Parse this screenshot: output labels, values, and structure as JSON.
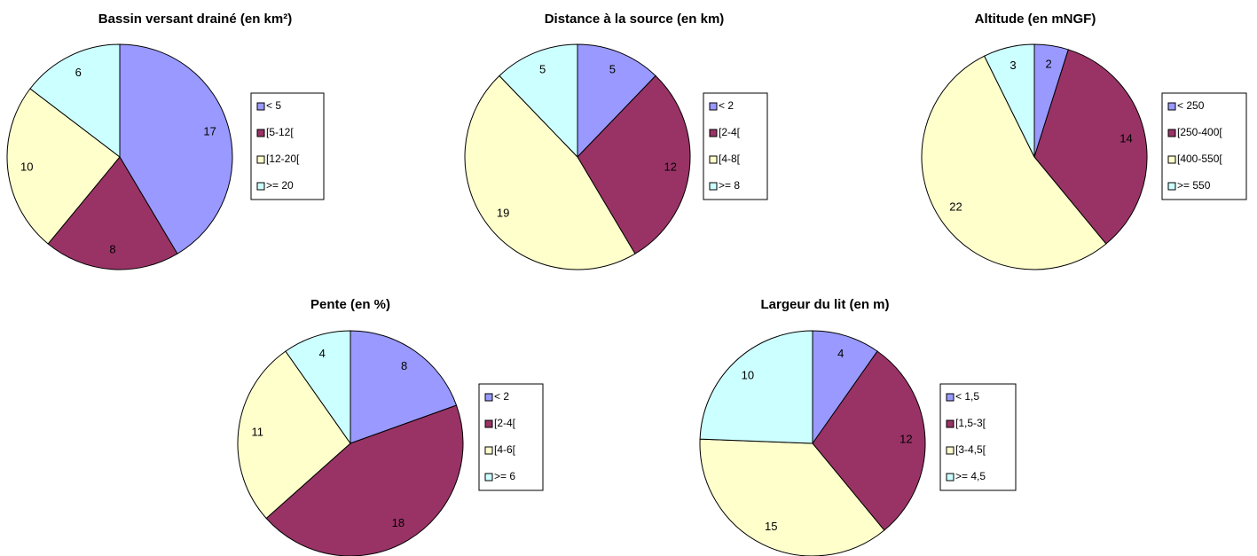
{
  "chart_data": [
    {
      "type": "pie",
      "title": "Bassin versant drainé (en km²)",
      "categories": [
        "< 5",
        "[5-12[",
        "[12-20[",
        ">= 20"
      ],
      "values": [
        17,
        8,
        10,
        6
      ],
      "colors": [
        "#9999ff",
        "#993366",
        "#ffffcc",
        "#ccffff"
      ]
    },
    {
      "type": "pie",
      "title": "Distance à la source (en km)",
      "categories": [
        "< 2",
        "[2-4[",
        "[4-8[",
        ">= 8"
      ],
      "values": [
        5,
        12,
        19,
        5
      ],
      "colors": [
        "#9999ff",
        "#993366",
        "#ffffcc",
        "#ccffff"
      ]
    },
    {
      "type": "pie",
      "title": "Altitude (en mNGF)",
      "categories": [
        "< 250",
        "[250-400[",
        "[400-550[",
        ">= 550"
      ],
      "values": [
        2,
        14,
        22,
        3
      ],
      "colors": [
        "#9999ff",
        "#993366",
        "#ffffcc",
        "#ccffff"
      ]
    },
    {
      "type": "pie",
      "title": "Pente (en %)",
      "categories": [
        "< 2",
        "[2-4[",
        "[4-6[",
        ">= 6"
      ],
      "values": [
        8,
        18,
        11,
        4
      ],
      "colors": [
        "#9999ff",
        "#993366",
        "#ffffcc",
        "#ccffff"
      ]
    },
    {
      "type": "pie",
      "title": "Largeur du lit (en m)",
      "categories": [
        "< 1,5",
        "[1,5-3[",
        "[3-4,5[",
        ">= 4,5"
      ],
      "values": [
        4,
        12,
        15,
        10
      ],
      "colors": [
        "#9999ff",
        "#993366",
        "#ffffcc",
        "#ccffff"
      ]
    }
  ]
}
